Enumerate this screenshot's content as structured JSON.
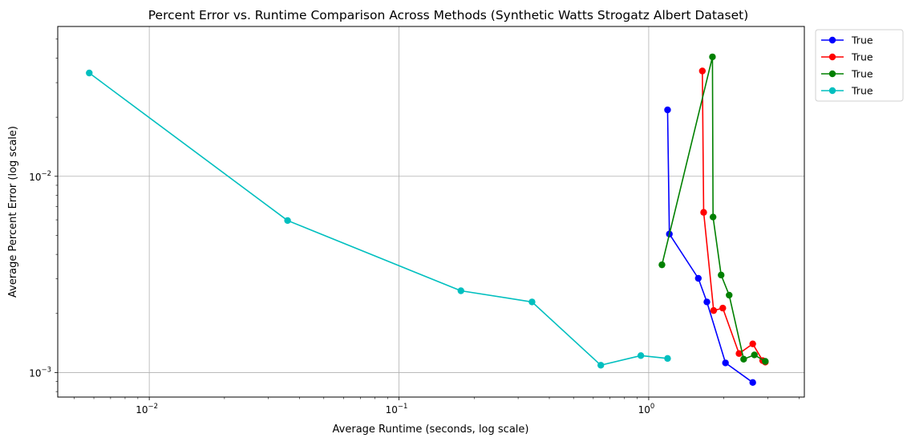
{
  "chart_data": {
    "type": "line",
    "title": "Percent Error vs. Runtime Comparison Across Methods (Synthetic Watts Strogatz Albert Dataset)",
    "xlabel": "Average Runtime (seconds, log scale)",
    "ylabel": "Average Percent Error (log scale)",
    "x_scale": "log",
    "y_scale": "log",
    "xlim": [
      0.0043,
      4.2
    ],
    "ylim": [
      0.00075,
      0.058
    ],
    "grid": true,
    "legend_position": "outside-top-right",
    "x_ticks": [
      {
        "value": 0.01,
        "base": "10",
        "exp": "−2"
      },
      {
        "value": 0.1,
        "base": "10",
        "exp": "−1"
      },
      {
        "value": 1,
        "base": "10",
        "exp": "0"
      }
    ],
    "y_ticks": [
      {
        "value": 0.001,
        "base": "10",
        "exp": "−3"
      },
      {
        "value": 0.01,
        "base": "10",
        "exp": "−2"
      }
    ],
    "series": [
      {
        "name": "True",
        "color": "#0000ff",
        "x": [
          1.19,
          1.21,
          1.58,
          1.71,
          2.03,
          2.61
        ],
        "y": [
          0.0218,
          0.00508,
          0.00302,
          0.00229,
          0.00112,
          0.00089
        ]
      },
      {
        "name": "True",
        "color": "#ff0000",
        "x": [
          1.64,
          1.66,
          1.82,
          1.98,
          2.3,
          2.61,
          2.86,
          2.93
        ],
        "y": [
          0.0344,
          0.00655,
          0.00207,
          0.00213,
          0.00125,
          0.0014,
          0.00115,
          0.00113
        ]
      },
      {
        "name": "True",
        "color": "#008000",
        "x": [
          1.13,
          1.8,
          1.81,
          1.95,
          2.1,
          2.4,
          2.65,
          2.93
        ],
        "y": [
          0.00354,
          0.0406,
          0.0062,
          0.00314,
          0.00248,
          0.00117,
          0.00123,
          0.00114
        ]
      },
      {
        "name": "True",
        "color": "#00bfbf",
        "x": [
          0.00575,
          0.0358,
          0.177,
          0.341,
          0.643,
          0.93,
          1.19
        ],
        "y": [
          0.0336,
          0.00595,
          0.00261,
          0.00229,
          0.00109,
          0.00122,
          0.00118
        ]
      }
    ]
  }
}
